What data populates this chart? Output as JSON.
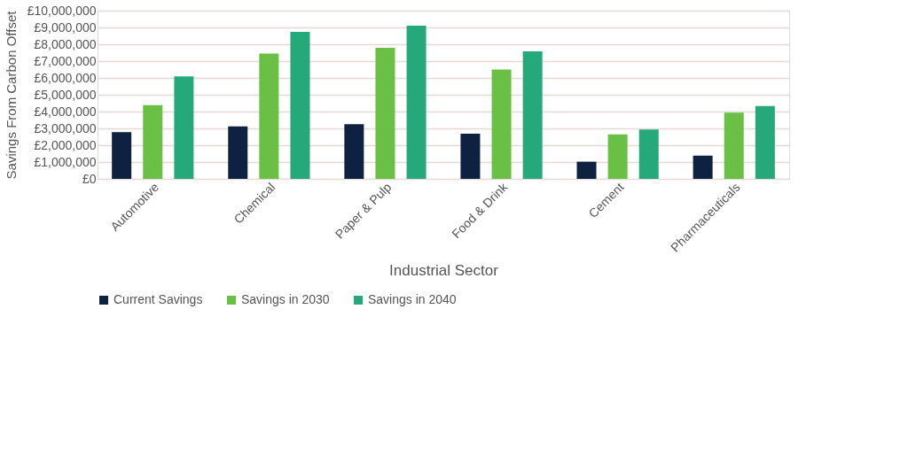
{
  "chart_data": {
    "type": "bar",
    "xlabel": "Industrial Sector",
    "ylabel": "Savings From Carbon Offset",
    "categories": [
      "Automotive",
      "Chemical",
      "Paper & Pulp",
      "Food & Drink",
      "Cement",
      "Pharmaceuticals"
    ],
    "series": [
      {
        "name": "Current Savings",
        "color": "#0f2140",
        "values": [
          2780000,
          3120000,
          3250000,
          2680000,
          1020000,
          1380000
        ]
      },
      {
        "name": "Savings in 2030",
        "color": "#6abf45",
        "values": [
          4380000,
          7450000,
          7790000,
          6500000,
          2640000,
          3930000
        ]
      },
      {
        "name": "Savings in 2040",
        "color": "#25a97b",
        "values": [
          6090000,
          8740000,
          9100000,
          7580000,
          2940000,
          4330000
        ]
      }
    ],
    "ylim": [
      0,
      10000000
    ],
    "yticks": [
      {
        "value": 0,
        "label": "£0"
      },
      {
        "value": 1000000,
        "label": "£1,000,000"
      },
      {
        "value": 2000000,
        "label": "£2,000,000"
      },
      {
        "value": 3000000,
        "label": "£3,000,000"
      },
      {
        "value": 4000000,
        "label": "£4,000,000"
      },
      {
        "value": 5000000,
        "label": "£5,000,000"
      },
      {
        "value": 6000000,
        "label": "£6,000,000"
      },
      {
        "value": 7000000,
        "label": "£7,000,000"
      },
      {
        "value": 8000000,
        "label": "£8,000,000"
      },
      {
        "value": 9000000,
        "label": "£9,000,000"
      },
      {
        "value": 10000000,
        "label": "£10,000,000"
      }
    ],
    "grid": "y",
    "legend": "bottom"
  }
}
